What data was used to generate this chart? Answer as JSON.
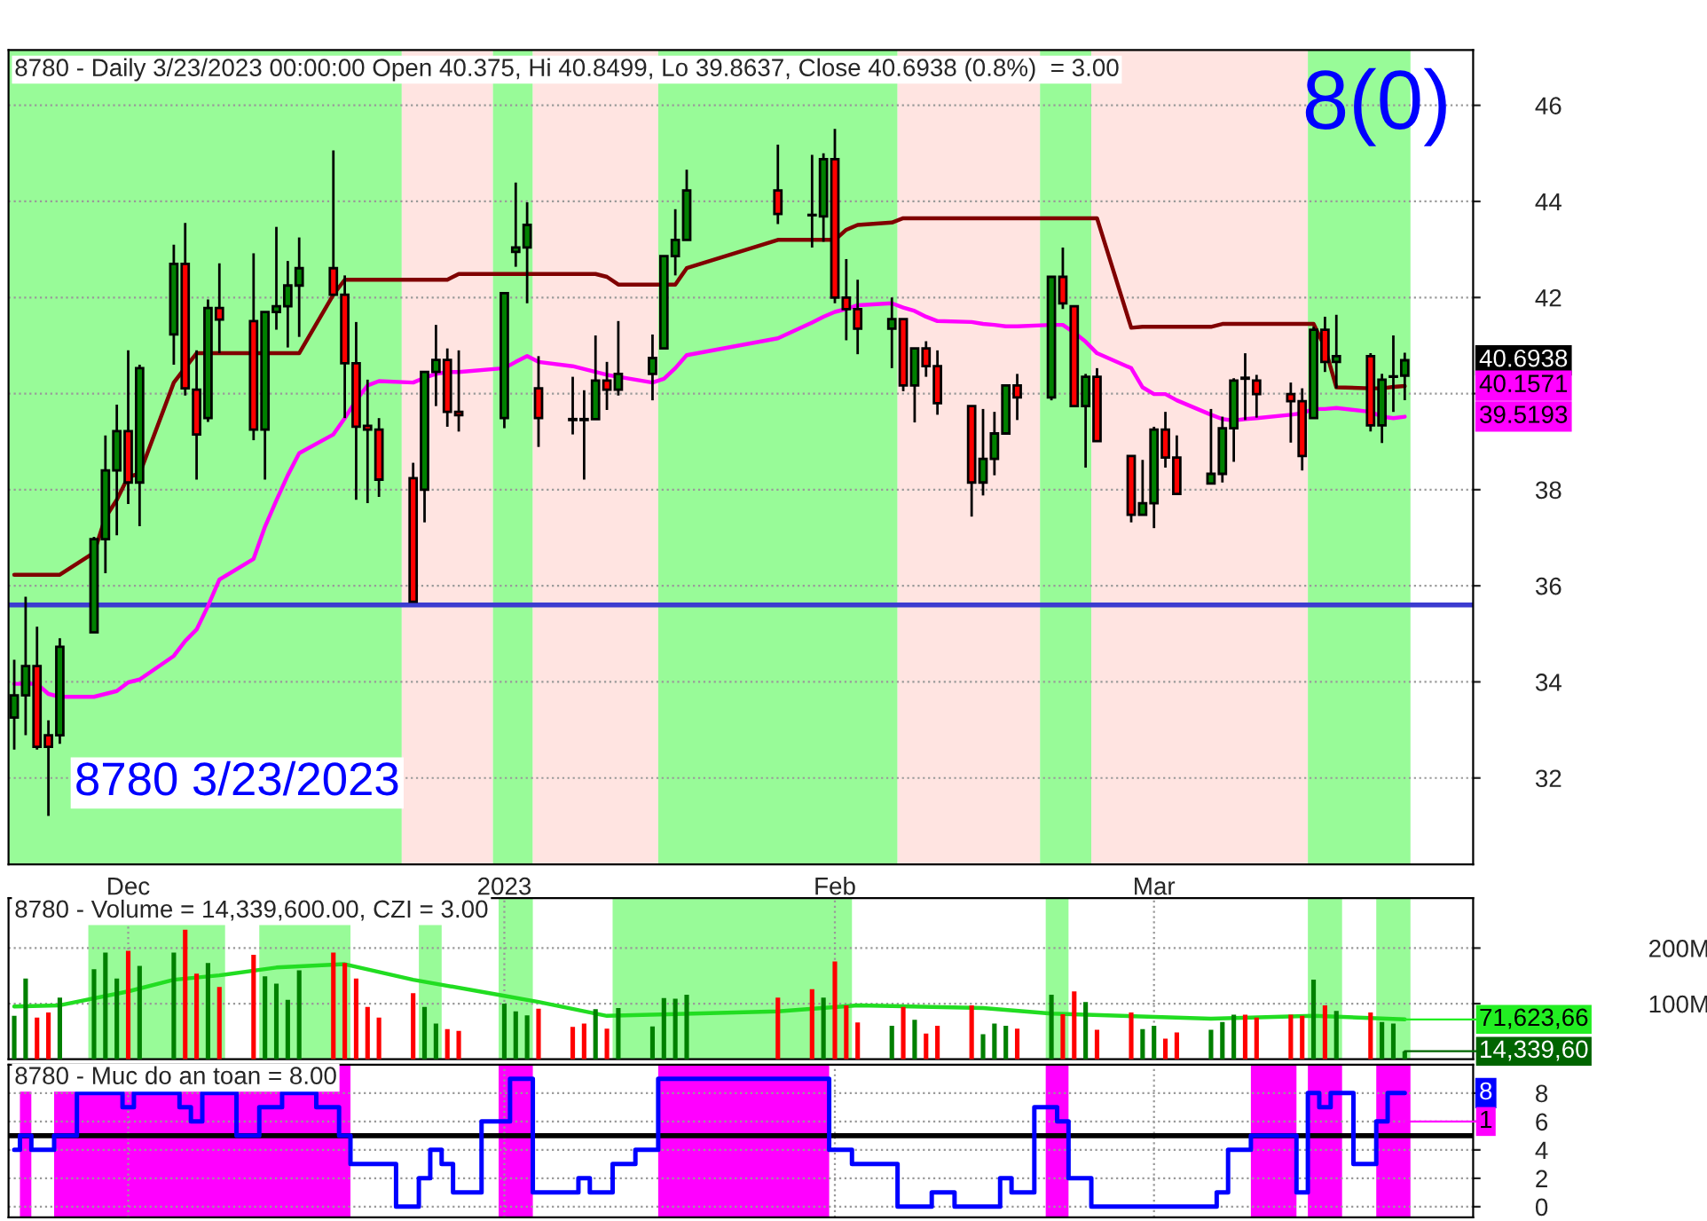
{
  "chart_data": [
    {
      "type": "candlestick",
      "title": "8780 - Daily 3/23/2023 00:00:00 Open 40.375, Hi 40.8499, Lo 39.8637, Close 40.6938 (0.8%)  = 3.00",
      "x": [
        "2022-11-21",
        "2022-11-22",
        "2022-11-23",
        "2022-11-24",
        "2022-11-25",
        "2022-11-28",
        "2022-11-29",
        "2022-11-30",
        "2022-12-01",
        "2022-12-02",
        "2022-12-05",
        "2022-12-06",
        "2022-12-07",
        "2022-12-08",
        "2022-12-09",
        "2022-12-12",
        "2022-12-13",
        "2022-12-14",
        "2022-12-15",
        "2022-12-16",
        "2022-12-19",
        "2022-12-20",
        "2022-12-21",
        "2022-12-22",
        "2022-12-23",
        "2022-12-26",
        "2022-12-27",
        "2022-12-28",
        "2022-12-29",
        "2022-12-30",
        "2023-01-03",
        "2023-01-04",
        "2023-01-05",
        "2023-01-06",
        "2023-01-09",
        "2023-01-10",
        "2023-01-11",
        "2023-01-12",
        "2023-01-13",
        "2023-01-16",
        "2023-01-17",
        "2023-01-18",
        "2023-01-19",
        "2023-01-27",
        "2023-01-30",
        "2023-01-31",
        "2023-02-01",
        "2023-02-02",
        "2023-02-03",
        "2023-02-06",
        "2023-02-07",
        "2023-02-08",
        "2023-02-09",
        "2023-02-10",
        "2023-02-13",
        "2023-02-14",
        "2023-02-15",
        "2023-02-16",
        "2023-02-17",
        "2023-02-20",
        "2023-02-21",
        "2023-02-22",
        "2023-02-23",
        "2023-02-24",
        "2023-02-27",
        "2023-02-28",
        "2023-03-01",
        "2023-03-02",
        "2023-03-03",
        "2023-03-06",
        "2023-03-07",
        "2023-03-08",
        "2023-03-09",
        "2023-03-10",
        "2023-03-13",
        "2023-03-14",
        "2023-03-15",
        "2023-03-16",
        "2023-03-17",
        "2023-03-20",
        "2023-03-21",
        "2023-03-22",
        "2023-03-23"
      ],
      "ohlc": [
        [
          33.26,
          34.46,
          32.59,
          33.72
        ],
        [
          33.72,
          35.77,
          32.89,
          34.33
        ],
        [
          34.33,
          35.15,
          32.59,
          32.65
        ],
        [
          32.89,
          33.2,
          31.21,
          32.65
        ],
        [
          32.89,
          34.91,
          32.71,
          34.73
        ],
        [
          35.03,
          37.02,
          35.03,
          36.97
        ],
        [
          36.97,
          39.13,
          36.26,
          38.4
        ],
        [
          38.4,
          39.77,
          37.05,
          39.22
        ],
        [
          39.22,
          40.9,
          37.7,
          38.15
        ],
        [
          38.15,
          40.6,
          37.24,
          40.53
        ],
        [
          41.23,
          43.1,
          40.6,
          42.7
        ],
        [
          42.7,
          43.55,
          39.96,
          40.11
        ],
        [
          40.08,
          40.9,
          38.21,
          39.15
        ],
        [
          39.49,
          41.96,
          39.41,
          41.78
        ],
        [
          41.78,
          42.71,
          40.84,
          41.54
        ],
        [
          41.51,
          42.92,
          39.03,
          39.25
        ],
        [
          39.25,
          41.7,
          38.21,
          41.7
        ],
        [
          41.7,
          43.47,
          41.33,
          41.82
        ],
        [
          41.82,
          42.76,
          40.96,
          42.25
        ],
        [
          42.25,
          43.25,
          41.18,
          42.61
        ],
        [
          42.61,
          45.06,
          42.06,
          42.06
        ],
        [
          42.06,
          42.46,
          39.49,
          40.63
        ],
        [
          40.63,
          41.49,
          37.79,
          39.31
        ],
        [
          39.33,
          40.29,
          37.72,
          39.25
        ],
        [
          39.25,
          39.49,
          37.85,
          38.21
        ],
        [
          38.24,
          38.56,
          35.67,
          35.67
        ],
        [
          38.0,
          40.47,
          37.32,
          40.45
        ],
        [
          40.45,
          41.43,
          39.74,
          40.7
        ],
        [
          40.7,
          40.94,
          39.31,
          39.62
        ],
        [
          39.62,
          40.9,
          39.21,
          39.55
        ],
        [
          39.49,
          42.11,
          39.28,
          42.09
        ],
        [
          42.95,
          44.39,
          42.64,
          43.04
        ],
        [
          43.04,
          43.98,
          41.88,
          43.51
        ],
        [
          40.11,
          40.78,
          38.89,
          39.49
        ],
        [
          39.47,
          40.35,
          39.15,
          39.45
        ],
        [
          39.47,
          40.07,
          38.21,
          39.45
        ],
        [
          39.47,
          41.21,
          39.47,
          40.27
        ],
        [
          40.27,
          40.66,
          39.66,
          40.08
        ],
        [
          40.08,
          41.51,
          39.96,
          40.41
        ],
        [
          40.41,
          41.23,
          39.86,
          40.74
        ],
        [
          40.94,
          42.86,
          40.94,
          42.86
        ],
        [
          42.86,
          43.84,
          42.46,
          43.2
        ],
        [
          43.2,
          44.66,
          43.19,
          44.23
        ],
        [
          44.23,
          45.18,
          43.53,
          43.74
        ],
        [
          43.72,
          44.97,
          43.04,
          43.71
        ],
        [
          43.69,
          45.0,
          43.16,
          44.88
        ],
        [
          44.88,
          45.51,
          41.88,
          42.0
        ],
        [
          42.0,
          42.8,
          41.11,
          41.76
        ],
        [
          41.76,
          42.37,
          40.82,
          41.35
        ],
        [
          41.35,
          42.0,
          40.53,
          41.55
        ],
        [
          41.55,
          41.55,
          40.05,
          40.17
        ],
        [
          40.17,
          40.94,
          39.4,
          40.94
        ],
        [
          40.94,
          41.09,
          40.35,
          40.57
        ],
        [
          40.57,
          40.9,
          39.56,
          39.8
        ],
        [
          39.74,
          39.74,
          37.44,
          38.15
        ],
        [
          38.15,
          39.68,
          37.88,
          38.64
        ],
        [
          38.64,
          39.62,
          38.3,
          39.17
        ],
        [
          39.17,
          40.17,
          39.16,
          40.17
        ],
        [
          40.17,
          40.41,
          39.45,
          39.92
        ],
        [
          39.92,
          42.43,
          39.86,
          42.43
        ],
        [
          42.43,
          43.04,
          41.76,
          41.88
        ],
        [
          41.82,
          41.82,
          39.74,
          39.74
        ],
        [
          39.74,
          40.41,
          38.46,
          40.35
        ],
        [
          40.35,
          40.53,
          39.01,
          39.01
        ],
        [
          38.7,
          38.7,
          37.32,
          37.48
        ],
        [
          37.48,
          38.62,
          37.48,
          37.72
        ],
        [
          37.72,
          39.31,
          37.2,
          39.25
        ],
        [
          39.25,
          39.62,
          38.46,
          38.67
        ],
        [
          38.67,
          39.13,
          37.91,
          37.91
        ],
        [
          38.13,
          39.68,
          38.13,
          38.33
        ],
        [
          38.33,
          39.52,
          38.15,
          39.28
        ],
        [
          39.28,
          40.32,
          38.58,
          40.27
        ],
        [
          40.33,
          40.84,
          39.45,
          40.31
        ],
        [
          40.27,
          40.39,
          39.5,
          39.99
        ],
        [
          39.99,
          40.23,
          38.98,
          39.84
        ],
        [
          39.84,
          40.11,
          38.4,
          38.7
        ],
        [
          39.49,
          41.39,
          39.49,
          41.33
        ],
        [
          41.33,
          41.6,
          40.45,
          40.66
        ],
        [
          40.66,
          41.64,
          40.11,
          40.78
        ],
        [
          40.78,
          40.84,
          39.21,
          39.34
        ],
        [
          39.34,
          40.41,
          38.97,
          40.29
        ],
        [
          40.35,
          41.21,
          39.62,
          40.36
        ],
        [
          40.375,
          40.8499,
          39.8637,
          40.6938
        ]
      ],
      "series": [
        {
          "type": "line",
          "color": "#800000",
          "values": [
            36.23,
            36.23,
            36.23,
            36.23,
            36.23,
            36.69,
            37.42,
            37.79,
            38.27,
            38.33,
            40.23,
            40.54,
            40.84,
            40.84,
            40.84,
            40.84,
            40.84,
            40.84,
            40.84,
            40.84,
            42.06,
            42.37,
            42.37,
            42.37,
            42.37,
            42.37,
            42.37,
            42.37,
            42.37,
            42.49,
            42.49,
            42.49,
            42.49,
            42.49,
            42.49,
            42.49,
            42.49,
            42.43,
            42.27,
            42.27,
            42.27,
            42.27,
            42.61,
            43.2,
            43.2,
            43.2,
            43.2,
            43.41,
            43.51,
            43.56,
            43.65,
            43.65,
            43.65,
            43.65,
            43.65,
            43.65,
            43.65,
            43.65,
            43.65,
            43.65,
            43.65,
            43.65,
            43.65,
            43.65,
            41.37,
            41.39,
            41.39,
            41.39,
            41.39,
            41.39,
            41.45,
            41.45,
            41.45,
            41.45,
            41.45,
            41.45,
            41.45,
            40.96,
            40.13,
            40.11,
            40.11,
            40.14,
            40.1571
          ]
        },
        {
          "type": "line",
          "color": "#ff00ff",
          "values": [
            33.96,
            33.96,
            33.96,
            33.75,
            33.69,
            33.69,
            33.75,
            33.81,
            33.99,
            34.05,
            34.54,
            34.85,
            35.09,
            35.58,
            36.13,
            36.56,
            37.23,
            37.78,
            38.3,
            38.76,
            39.15,
            39.49,
            39.86,
            40.17,
            40.26,
            40.23,
            40.33,
            40.41,
            40.45,
            40.45,
            40.53,
            40.66,
            40.78,
            40.66,
            40.57,
            40.51,
            40.45,
            40.39,
            40.35,
            40.23,
            40.31,
            40.53,
            40.8,
            41.15,
            41.48,
            41.6,
            41.7,
            41.76,
            41.84,
            41.88,
            41.79,
            41.72,
            41.6,
            41.51,
            41.49,
            41.45,
            41.43,
            41.4,
            41.4,
            41.43,
            41.43,
            41.27,
            41.08,
            40.84,
            40.53,
            40.13,
            39.99,
            39.99,
            39.86,
            39.56,
            39.47,
            39.44,
            39.47,
            39.49,
            39.56,
            39.59,
            39.68,
            39.68,
            39.7,
            39.62,
            39.52,
            39.49,
            39.5193
          ]
        }
      ],
      "bands": [
        {
          "axis": "x",
          "from": "2022-11-20T12:00",
          "to": "2022-12-25",
          "color": "#98fb98"
        },
        {
          "axis": "x",
          "from": "2022-12-25",
          "to": "2023-01-02",
          "color": "#ffe4e1"
        },
        {
          "axis": "x",
          "from": "2023-01-02",
          "to": "2023-01-05T12:00",
          "color": "#98fb98"
        },
        {
          "axis": "x",
          "from": "2023-01-05T12:00",
          "to": "2023-01-16T12:00",
          "color": "#ffe4e1"
        },
        {
          "axis": "x",
          "from": "2023-01-16T12:00",
          "to": "2023-02-06T12:00",
          "color": "#98fb98"
        },
        {
          "axis": "x",
          "from": "2023-02-06T12:00",
          "to": "2023-02-19",
          "color": "#ffe4e1"
        },
        {
          "axis": "x",
          "from": "2023-02-19",
          "to": "2023-02-23T12:00",
          "color": "#98fb98"
        },
        {
          "axis": "x",
          "from": "2023-02-23T12:00",
          "to": "2023-03-14T12:00",
          "color": "#ffe4e1"
        },
        {
          "axis": "x",
          "from": "2023-03-14T12:00",
          "to": "2023-03-23T12:00",
          "color": "#98fb98"
        }
      ],
      "ref_lines": [
        {
          "axis": "y",
          "value": 35.6,
          "color": "#3c3cd0"
        }
      ],
      "annotations": [
        "8780 3/23/2023",
        "8(0)",
        "40.6938",
        "40.1571",
        "39.5193"
      ],
      "xlim": [
        "2022-11-20T12:00",
        "2023-03-29"
      ],
      "xticks": [
        {
          "value": "2022-12-01",
          "label": "Dec"
        },
        {
          "value": "2023-01-03",
          "label": "2023"
        },
        {
          "value": "2023-02-01",
          "label": "Feb"
        },
        {
          "value": "2023-03-01",
          "label": "Mar"
        }
      ],
      "ylim": [
        30.2,
        47.15
      ],
      "yticks": [
        32,
        34,
        36,
        38,
        {
          "value": 40,
          "label": null
        },
        42,
        44,
        46
      ],
      "grid": "y"
    },
    {
      "type": "bar",
      "title": "8780 - Volume = 14,339,600.00, CZI = 3.00",
      "x": [
        "2022-11-21",
        "2022-11-22",
        "2022-11-23",
        "2022-11-24",
        "2022-11-25",
        "2022-11-28",
        "2022-11-29",
        "2022-11-30",
        "2022-12-01",
        "2022-12-02",
        "2022-12-05",
        "2022-12-06",
        "2022-12-07",
        "2022-12-08",
        "2022-12-09",
        "2022-12-12",
        "2022-12-13",
        "2022-12-14",
        "2022-12-15",
        "2022-12-16",
        "2022-12-19",
        "2022-12-20",
        "2022-12-21",
        "2022-12-22",
        "2022-12-23",
        "2022-12-26",
        "2022-12-27",
        "2022-12-28",
        "2022-12-29",
        "2022-12-30",
        "2023-01-03",
        "2023-01-04",
        "2023-01-05",
        "2023-01-06",
        "2023-01-09",
        "2023-01-10",
        "2023-01-11",
        "2023-01-12",
        "2023-01-13",
        "2023-01-16",
        "2023-01-17",
        "2023-01-18",
        "2023-01-19",
        "2023-01-27",
        "2023-01-30",
        "2023-01-31",
        "2023-02-01",
        "2023-02-02",
        "2023-02-03",
        "2023-02-06",
        "2023-02-07",
        "2023-02-08",
        "2023-02-09",
        "2023-02-10",
        "2023-02-13",
        "2023-02-14",
        "2023-02-15",
        "2023-02-16",
        "2023-02-17",
        "2023-02-20",
        "2023-02-21",
        "2023-02-22",
        "2023-02-23",
        "2023-02-24",
        "2023-02-27",
        "2023-02-28",
        "2023-03-01",
        "2023-03-02",
        "2023-03-03",
        "2023-03-06",
        "2023-03-07",
        "2023-03-08",
        "2023-03-09",
        "2023-03-10",
        "2023-03-13",
        "2023-03-14",
        "2023-03-15",
        "2023-03-16",
        "2023-03-17",
        "2023-03-20",
        "2023-03-21",
        "2023-03-22",
        "2023-03-23"
      ],
      "series": [
        {
          "type": "bar",
          "values": [
            78,
            145,
            75,
            84,
            111,
            162,
            192,
            145,
            195,
            168,
            192,
            233,
            154,
            173,
            130,
            188,
            149,
            136,
            107,
            160,
            192,
            173,
            145,
            94,
            75,
            119,
            94,
            64,
            54,
            51,
            100,
            86,
            79,
            91,
            58,
            64,
            90,
            55,
            92,
            59,
            110,
            109,
            116,
            111,
            126,
            111,
            176,
            97,
            66,
            60,
            94,
            71,
            46,
            60,
            97,
            45,
            64,
            60,
            55,
            116,
            81,
            122,
            103,
            53,
            84,
            54,
            60,
            37,
            48,
            53,
            67,
            80,
            80,
            75,
            80,
            78,
            143,
            97,
            87,
            84,
            67,
            64,
            14.34
          ],
          "colors": [
            "#008000",
            "#008000",
            "#ff0000",
            "#ff0000",
            "#008000",
            "#008000",
            "#008000",
            "#008000",
            "#ff0000",
            "#008000",
            "#008000",
            "#ff0000",
            "#ff0000",
            "#008000",
            "#ff0000",
            "#ff0000",
            "#008000",
            "#008000",
            "#008000",
            "#008000",
            "#ff0000",
            "#ff0000",
            "#ff0000",
            "#ff0000",
            "#ff0000",
            "#ff0000",
            "#008000",
            "#008000",
            "#ff0000",
            "#ff0000",
            "#008000",
            "#008000",
            "#008000",
            "#ff0000",
            "#ff0000",
            "#ff0000",
            "#008000",
            "#ff0000",
            "#008000",
            "#008000",
            "#008000",
            "#008000",
            "#008000",
            "#ff0000",
            "#ff0000",
            "#008000",
            "#ff0000",
            "#ff0000",
            "#ff0000",
            "#008000",
            "#ff0000",
            "#008000",
            "#ff0000",
            "#ff0000",
            "#ff0000",
            "#008000",
            "#008000",
            "#008000",
            "#ff0000",
            "#008000",
            "#ff0000",
            "#ff0000",
            "#008000",
            "#ff0000",
            "#ff0000",
            "#008000",
            "#008000",
            "#ff0000",
            "#ff0000",
            "#008000",
            "#008000",
            "#008000",
            "#ff0000",
            "#ff0000",
            "#ff0000",
            "#ff0000",
            "#008000",
            "#ff0000",
            "#008000",
            "#ff0000",
            "#008000",
            "#008000",
            "#008000"
          ]
        },
        {
          "type": "line",
          "color": "#22dd22",
          "x": [
            "2022-11-21",
            "2022-11-25",
            "2022-12-01",
            "2022-12-05",
            "2022-12-09",
            "2022-12-14",
            "2022-12-20",
            "2022-12-26",
            "2023-01-03",
            "2023-01-06",
            "2023-01-12",
            "2023-01-27",
            "2023-02-03",
            "2023-02-14",
            "2023-02-20",
            "2023-03-06",
            "2023-03-15",
            "2023-03-23"
          ],
          "values": [
            95,
            97,
            122,
            143,
            151,
            165,
            171,
            143,
            114,
            103,
            78,
            86,
            97,
            92,
            82,
            73,
            78,
            71.62
          ]
        }
      ],
      "bands": [
        {
          "axis": "x",
          "from": "2022-11-27T12:00",
          "to": "2022-12-09T12:00",
          "color": "#98fb98"
        },
        {
          "axis": "x",
          "from": "2022-12-12T12:00",
          "to": "2022-12-20T12:00",
          "color": "#98fb98"
        },
        {
          "axis": "x",
          "from": "2022-12-26T12:00",
          "to": "2022-12-28T12:00",
          "color": "#98fb98"
        },
        {
          "axis": "x",
          "from": "2023-01-02T12:00",
          "to": "2023-01-05T12:00",
          "color": "#98fb98"
        },
        {
          "axis": "x",
          "from": "2023-01-12T12:00",
          "to": "2023-02-02T12:00",
          "color": "#98fb98"
        },
        {
          "axis": "x",
          "from": "2023-02-19T12:00",
          "to": "2023-02-21T12:00",
          "color": "#98fb98"
        },
        {
          "axis": "x",
          "from": "2023-03-14T12:00",
          "to": "2023-03-17T12:00",
          "color": "#98fb98"
        },
        {
          "axis": "x",
          "from": "2023-03-20T12:00",
          "to": "2023-03-23T12:00",
          "color": "#98fb98"
        }
      ],
      "annotations": [
        {
          "text": "71,623,66",
          "x": "2023-03-23",
          "y": 71.62
        },
        {
          "text": "14,339,60",
          "x": "2023-03-23",
          "y": 14.34
        }
      ],
      "xlim": [
        "2022-11-20T12:00",
        "2023-03-29"
      ],
      "xticks": [
        {
          "value": "2022-12-01",
          "label": null
        },
        {
          "value": "2023-01-03",
          "label": null
        },
        {
          "value": "2023-02-01",
          "label": null
        },
        {
          "value": "2023-03-01",
          "label": null
        }
      ],
      "ylim": [
        0,
        290
      ],
      "yticks": [
        {
          "value": 100,
          "label": "100M"
        },
        {
          "value": 200,
          "label": "200M"
        }
      ],
      "grid": true,
      "tick_labels": "y"
    },
    {
      "type": "step",
      "title": "8780 - Muc do an toan = 8.00",
      "color": "#0000ff",
      "x": [
        "2022-11-21",
        "2022-11-22",
        "2022-11-23",
        "2022-11-24",
        "2022-11-25",
        "2022-11-28",
        "2022-11-29",
        "2022-11-30",
        "2022-12-01",
        "2022-12-02",
        "2022-12-05",
        "2022-12-06",
        "2022-12-07",
        "2022-12-08",
        "2022-12-09",
        "2022-12-12",
        "2022-12-13",
        "2022-12-14",
        "2022-12-15",
        "2022-12-16",
        "2022-12-19",
        "2022-12-20",
        "2022-12-21",
        "2022-12-22",
        "2022-12-23",
        "2022-12-26",
        "2022-12-27",
        "2022-12-28",
        "2022-12-29",
        "2022-12-30",
        "2023-01-03",
        "2023-01-04",
        "2023-01-05",
        "2023-01-06",
        "2023-01-09",
        "2023-01-10",
        "2023-01-11",
        "2023-01-12",
        "2023-01-13",
        "2023-01-16",
        "2023-01-17",
        "2023-01-18",
        "2023-01-19",
        "2023-01-27",
        "2023-01-30",
        "2023-01-31",
        "2023-02-01",
        "2023-02-02",
        "2023-02-03",
        "2023-02-06",
        "2023-02-07",
        "2023-02-08",
        "2023-02-09",
        "2023-02-10",
        "2023-02-13",
        "2023-02-14",
        "2023-02-15",
        "2023-02-16",
        "2023-02-17",
        "2023-02-20",
        "2023-02-21",
        "2023-02-22",
        "2023-02-23",
        "2023-02-24",
        "2023-02-27",
        "2023-02-28",
        "2023-03-01",
        "2023-03-02",
        "2023-03-03",
        "2023-03-06",
        "2023-03-07",
        "2023-03-08",
        "2023-03-09",
        "2023-03-10",
        "2023-03-13",
        "2023-03-14",
        "2023-03-15",
        "2023-03-16",
        "2023-03-17",
        "2023-03-20",
        "2023-03-21",
        "2023-03-22",
        "2023-03-23"
      ],
      "values": [
        4,
        5,
        4,
        4,
        5,
        8,
        8,
        8,
        7,
        8,
        8,
        7,
        6,
        8,
        8,
        5,
        7,
        7,
        8,
        8,
        7,
        5,
        3,
        3,
        3,
        0,
        2,
        4,
        3,
        1,
        6,
        9,
        9,
        1,
        1,
        2,
        1,
        1,
        3,
        4,
        9,
        9,
        9,
        9,
        9,
        9,
        4,
        4,
        3,
        3,
        0,
        0,
        0,
        1,
        0,
        0,
        0,
        2,
        1,
        7,
        6,
        2,
        2,
        0,
        0,
        0,
        0,
        0,
        0,
        0,
        1,
        4,
        4,
        5,
        5,
        1,
        8,
        7,
        8,
        3,
        6,
        8,
        8
      ],
      "bands": [
        {
          "axis": "x",
          "from": "2022-11-21T12:00",
          "to": "2022-11-22T12:00",
          "color": "#ff00ff"
        },
        {
          "axis": "x",
          "from": "2022-11-24T12:00",
          "to": "2022-12-20T12:00",
          "color": "#ff00ff"
        },
        {
          "axis": "x",
          "from": "2023-01-02T12:00",
          "to": "2023-01-05T12:00",
          "color": "#ff00ff"
        },
        {
          "axis": "x",
          "from": "2023-01-16T12:00",
          "to": "2023-01-31T12:00",
          "color": "#ff00ff"
        },
        {
          "axis": "x",
          "from": "2023-02-19T12:00",
          "to": "2023-02-21T12:00",
          "color": "#ff00ff"
        },
        {
          "axis": "x",
          "from": "2023-03-09T12:00",
          "to": "2023-03-13T12:00",
          "color": "#ff00ff"
        },
        {
          "axis": "x",
          "from": "2023-03-14T12:00",
          "to": "2023-03-17T12:00",
          "color": "#ff00ff"
        },
        {
          "axis": "x",
          "from": "2023-03-20T12:00",
          "to": "2023-03-23T12:00",
          "color": "#ff00ff"
        }
      ],
      "ref_lines": [
        {
          "axis": "y",
          "value": 5,
          "color": "#000000"
        }
      ],
      "annotations": [
        "8",
        {
          "text": "1",
          "x": "2023-03-23",
          "y": 6
        }
      ],
      "xlim": [
        "2022-11-20T12:00",
        "2023-03-29"
      ],
      "xticks": [
        {
          "value": "2022-12-01",
          "label": null
        },
        {
          "value": "2023-01-03",
          "label": null
        },
        {
          "value": "2023-02-01",
          "label": null
        },
        {
          "value": "2023-03-01",
          "label": null
        }
      ],
      "ylim": [
        -0.75,
        10
      ],
      "yticks": [
        0,
        2,
        4,
        6,
        8
      ],
      "grid": true,
      "tick_labels": "y"
    }
  ]
}
